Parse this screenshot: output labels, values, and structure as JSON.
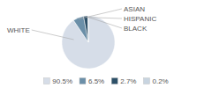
{
  "chart_data": {
    "type": "pie",
    "categories": [
      "WHITE",
      "ASIAN",
      "HISPANIC",
      "BLACK"
    ],
    "values": [
      90.5,
      6.5,
      2.7,
      0.2
    ],
    "value_labels": [
      "90.5%",
      "6.5%",
      "2.7%",
      "0.2%"
    ],
    "colors": [
      "#d6dde8",
      "#6b8fa8",
      "#2d5068",
      "#c8d4e0"
    ]
  }
}
